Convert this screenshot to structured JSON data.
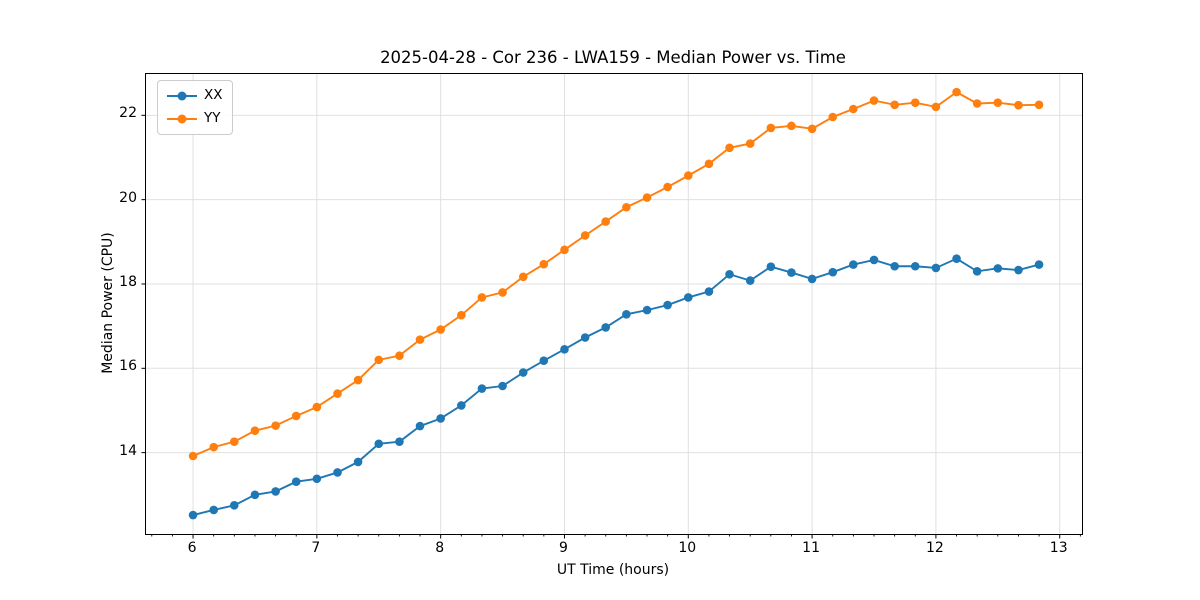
{
  "chart_data": {
    "type": "line",
    "title": "2025-04-28 - Cor 236 - LWA159 - Median Power vs. Time",
    "xlabel": "UT Time (hours)",
    "ylabel": "Median Power (CPU)",
    "xlim": [
      5.62,
      13.18
    ],
    "ylim": [
      12.07,
      22.98
    ],
    "x_ticks": [
      6,
      7,
      8,
      9,
      10,
      11,
      12,
      13
    ],
    "y_ticks": [
      14,
      16,
      18,
      20,
      22
    ],
    "x_minor_divisions": 6,
    "grid": true,
    "legend_position": "upper-left",
    "colors": {
      "grid": "#e0e0e0",
      "spine": "#000000"
    },
    "x": [
      6.0,
      6.167,
      6.333,
      6.5,
      6.667,
      6.833,
      7.0,
      7.167,
      7.333,
      7.5,
      7.667,
      7.833,
      8.0,
      8.167,
      8.333,
      8.5,
      8.667,
      8.833,
      9.0,
      9.167,
      9.333,
      9.5,
      9.667,
      9.833,
      10.0,
      10.167,
      10.333,
      10.5,
      10.667,
      10.833,
      11.0,
      11.167,
      11.333,
      11.5,
      11.667,
      11.833,
      12.0,
      12.167,
      12.333,
      12.5,
      12.667,
      12.833
    ],
    "series": [
      {
        "name": "XX",
        "color": "#1f77b4",
        "values": [
          12.52,
          12.64,
          12.75,
          13.0,
          13.08,
          13.31,
          13.38,
          13.53,
          13.78,
          14.21,
          14.26,
          14.63,
          14.81,
          15.12,
          15.52,
          15.58,
          15.9,
          16.18,
          16.45,
          16.73,
          16.97,
          17.28,
          17.38,
          17.5,
          17.68,
          17.82,
          18.23,
          18.08,
          18.41,
          18.27,
          18.12,
          18.28,
          18.46,
          18.57,
          18.42,
          18.42,
          18.38,
          18.6,
          18.3,
          18.37,
          18.33,
          18.46
        ]
      },
      {
        "name": "YY",
        "color": "#ff7f0e",
        "values": [
          13.92,
          14.13,
          14.26,
          14.52,
          14.64,
          14.87,
          15.08,
          15.4,
          15.72,
          16.2,
          16.3,
          16.68,
          16.92,
          17.26,
          17.68,
          17.8,
          18.17,
          18.47,
          18.81,
          19.15,
          19.48,
          19.82,
          20.05,
          20.3,
          20.57,
          20.85,
          21.23,
          21.33,
          21.7,
          21.75,
          21.68,
          21.96,
          22.15,
          22.35,
          22.25,
          22.3,
          22.2,
          22.55,
          22.28,
          22.3,
          22.24,
          22.25
        ]
      }
    ]
  }
}
